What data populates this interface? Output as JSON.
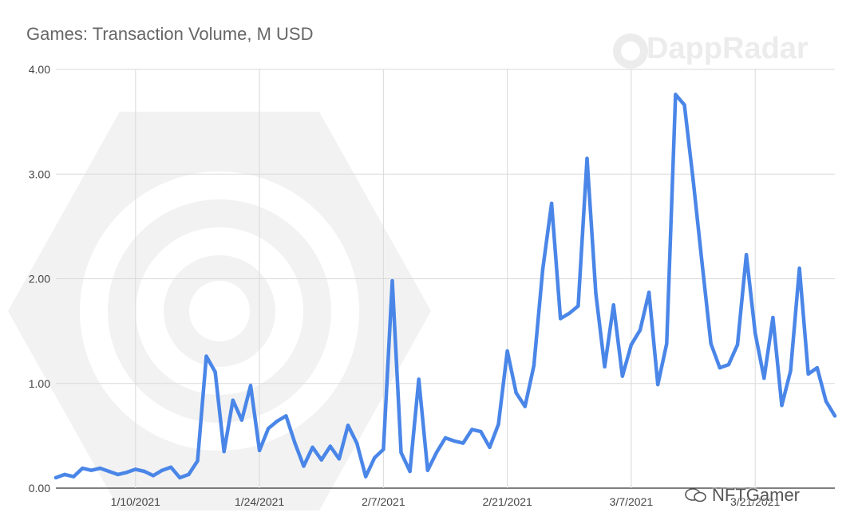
{
  "chart_data": {
    "type": "line",
    "title": "Games: Transaction Volume, M USD",
    "xlabel": "",
    "ylabel": "",
    "ylim": [
      0,
      4
    ],
    "yticks": [
      "0.00",
      "1.00",
      "2.00",
      "3.00",
      "4.00"
    ],
    "xticks": [
      "1/10/2021",
      "1/24/2021",
      "2/7/2021",
      "2/21/2021",
      "3/7/2021",
      "3/21/2021"
    ],
    "grid": true,
    "legend": "none",
    "series": [
      {
        "color": "#4a86e8",
        "x": [
          "2021-01-01",
          "2021-01-02",
          "2021-01-03",
          "2021-01-04",
          "2021-01-05",
          "2021-01-06",
          "2021-01-07",
          "2021-01-08",
          "2021-01-09",
          "2021-01-10",
          "2021-01-11",
          "2021-01-12",
          "2021-01-13",
          "2021-01-14",
          "2021-01-15",
          "2021-01-16",
          "2021-01-17",
          "2021-01-18",
          "2021-01-19",
          "2021-01-20",
          "2021-01-21",
          "2021-01-22",
          "2021-01-23",
          "2021-01-24",
          "2021-01-25",
          "2021-01-26",
          "2021-01-27",
          "2021-01-28",
          "2021-01-29",
          "2021-01-30",
          "2021-01-31",
          "2021-02-01",
          "2021-02-02",
          "2021-02-03",
          "2021-02-04",
          "2021-02-05",
          "2021-02-06",
          "2021-02-07",
          "2021-02-08",
          "2021-02-09",
          "2021-02-10",
          "2021-02-11",
          "2021-02-12",
          "2021-02-13",
          "2021-02-14",
          "2021-02-15",
          "2021-02-16",
          "2021-02-17",
          "2021-02-18",
          "2021-02-19",
          "2021-02-20",
          "2021-02-21",
          "2021-02-22",
          "2021-02-23",
          "2021-02-24",
          "2021-02-25",
          "2021-02-26",
          "2021-02-27",
          "2021-02-28",
          "2021-03-01",
          "2021-03-02",
          "2021-03-03",
          "2021-03-04",
          "2021-03-05",
          "2021-03-06",
          "2021-03-07",
          "2021-03-08",
          "2021-03-09",
          "2021-03-10",
          "2021-03-11",
          "2021-03-12",
          "2021-03-13",
          "2021-03-14",
          "2021-03-15",
          "2021-03-16",
          "2021-03-17",
          "2021-03-18",
          "2021-03-19",
          "2021-03-20",
          "2021-03-21",
          "2021-03-22",
          "2021-03-23",
          "2021-03-24",
          "2021-03-25",
          "2021-03-26",
          "2021-03-27",
          "2021-03-28",
          "2021-03-29",
          "2021-03-30"
        ],
        "values": [
          0.1,
          0.13,
          0.11,
          0.19,
          0.17,
          0.19,
          0.16,
          0.13,
          0.15,
          0.18,
          0.16,
          0.12,
          0.17,
          0.2,
          0.1,
          0.13,
          0.26,
          1.26,
          1.11,
          0.35,
          0.84,
          0.65,
          0.98,
          0.36,
          0.57,
          0.64,
          0.69,
          0.43,
          0.21,
          0.39,
          0.27,
          0.4,
          0.28,
          0.6,
          0.43,
          0.11,
          0.29,
          0.37,
          1.98,
          0.34,
          0.16,
          1.04,
          0.17,
          0.34,
          0.48,
          0.45,
          0.43,
          0.56,
          0.54,
          0.39,
          0.61,
          1.31,
          0.91,
          0.78,
          1.17,
          2.09,
          2.72,
          1.62,
          1.67,
          1.74,
          3.15,
          1.86,
          1.16,
          1.75,
          1.07,
          1.37,
          1.51,
          1.87,
          0.99,
          1.38,
          3.76,
          3.66,
          2.94,
          2.15,
          1.38,
          1.15,
          1.18,
          1.37,
          2.23,
          1.48,
          1.05,
          1.63,
          0.79,
          1.12,
          2.1,
          1.09,
          1.15,
          0.83,
          0.69
        ]
      }
    ],
    "watermarks": [
      "DappRadar",
      "NFTGamer"
    ]
  }
}
